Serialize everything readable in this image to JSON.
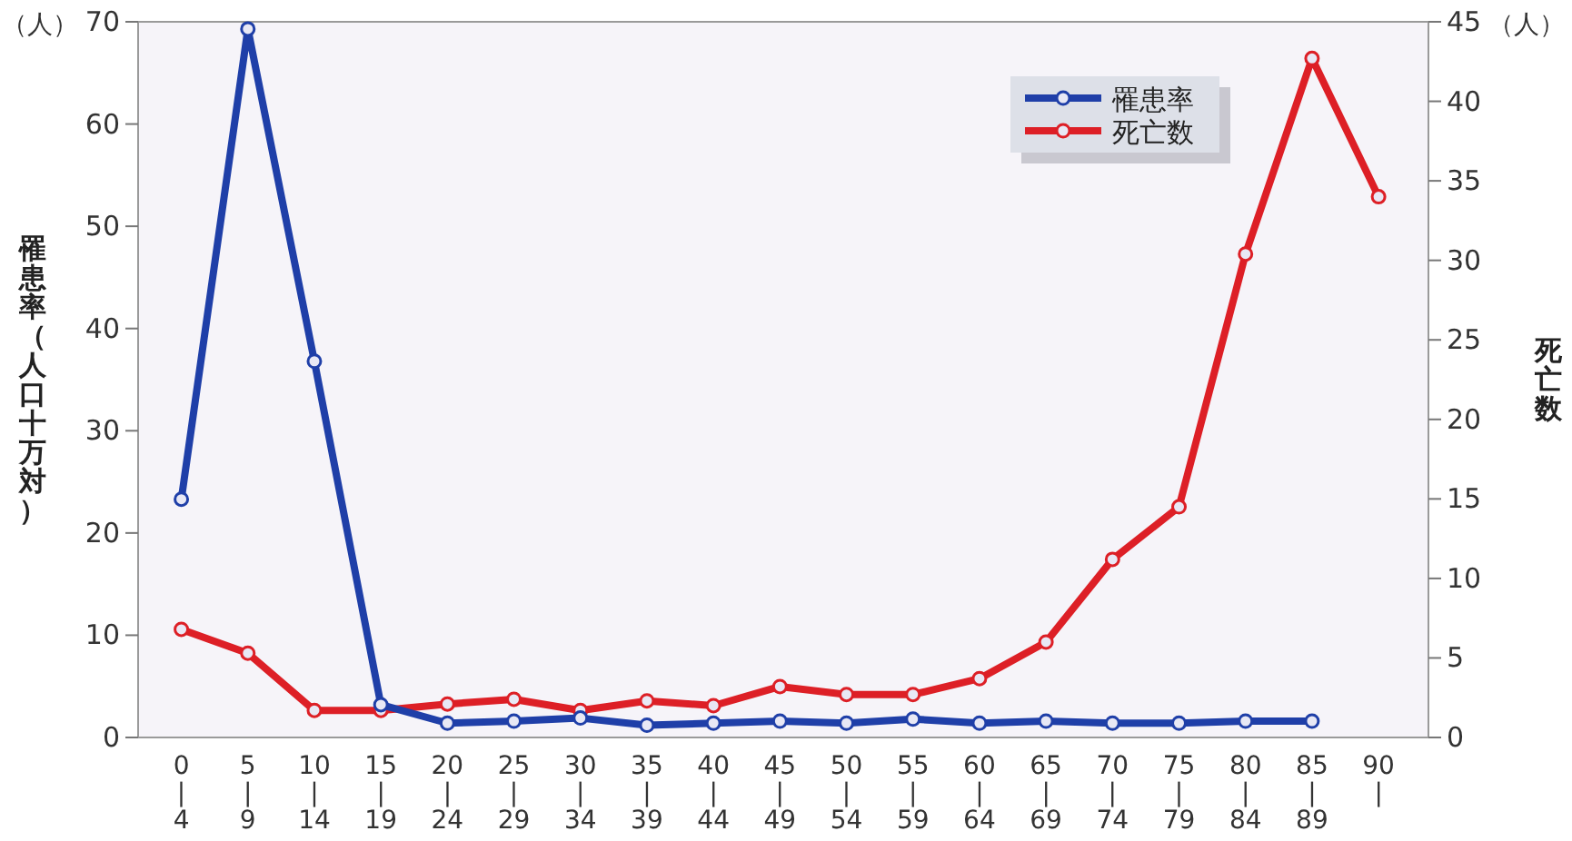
{
  "chart_data": {
    "type": "line",
    "categories": [
      "0\n|\n4",
      "5\n|\n9",
      "10\n|\n14",
      "15\n|\n19",
      "20\n|\n24",
      "25\n|\n29",
      "30\n|\n34",
      "35\n|\n39",
      "40\n|\n44",
      "45\n|\n49",
      "50\n|\n54",
      "55\n|\n59",
      "60\n|\n64",
      "65\n|\n69",
      "70\n|\n74",
      "75\n|\n79",
      "80\n|\n84",
      "85\n|\n89",
      "90\n|"
    ],
    "ylabel": "罹患率（人口十万対）",
    "y2label": "死亡数",
    "annotations": [
      "（人）",
      "（人）"
    ],
    "ylim": [
      0,
      70
    ],
    "yticks": [
      0,
      10,
      20,
      30,
      40,
      50,
      60,
      70
    ],
    "y2lim": [
      0,
      45
    ],
    "y2ticks": [
      0,
      5,
      10,
      15,
      20,
      25,
      30,
      35,
      40,
      45
    ],
    "series": [
      {
        "name": "罹患率",
        "color": "#1f3fa8",
        "values": [
          23.3,
          69.3,
          36.8,
          3.2,
          1.4,
          1.6,
          1.9,
          1.2,
          1.4,
          1.6,
          1.4,
          1.8,
          1.4,
          1.6,
          1.4,
          1.4,
          1.6,
          1.6,
          null
        ]
      },
      {
        "name": "死亡数",
        "color": "#dd1f26",
        "axis": "y2",
        "values": [
          6.8,
          5.3,
          1.7,
          1.7,
          2.1,
          2.4,
          1.7,
          2.3,
          2.0,
          3.2,
          2.7,
          2.7,
          3.7,
          6.0,
          11.2,
          14.5,
          30.4,
          42.7,
          34.0
        ]
      }
    ],
    "marker": "circle",
    "line_style": "solid",
    "grid": false,
    "legend": "top right"
  }
}
